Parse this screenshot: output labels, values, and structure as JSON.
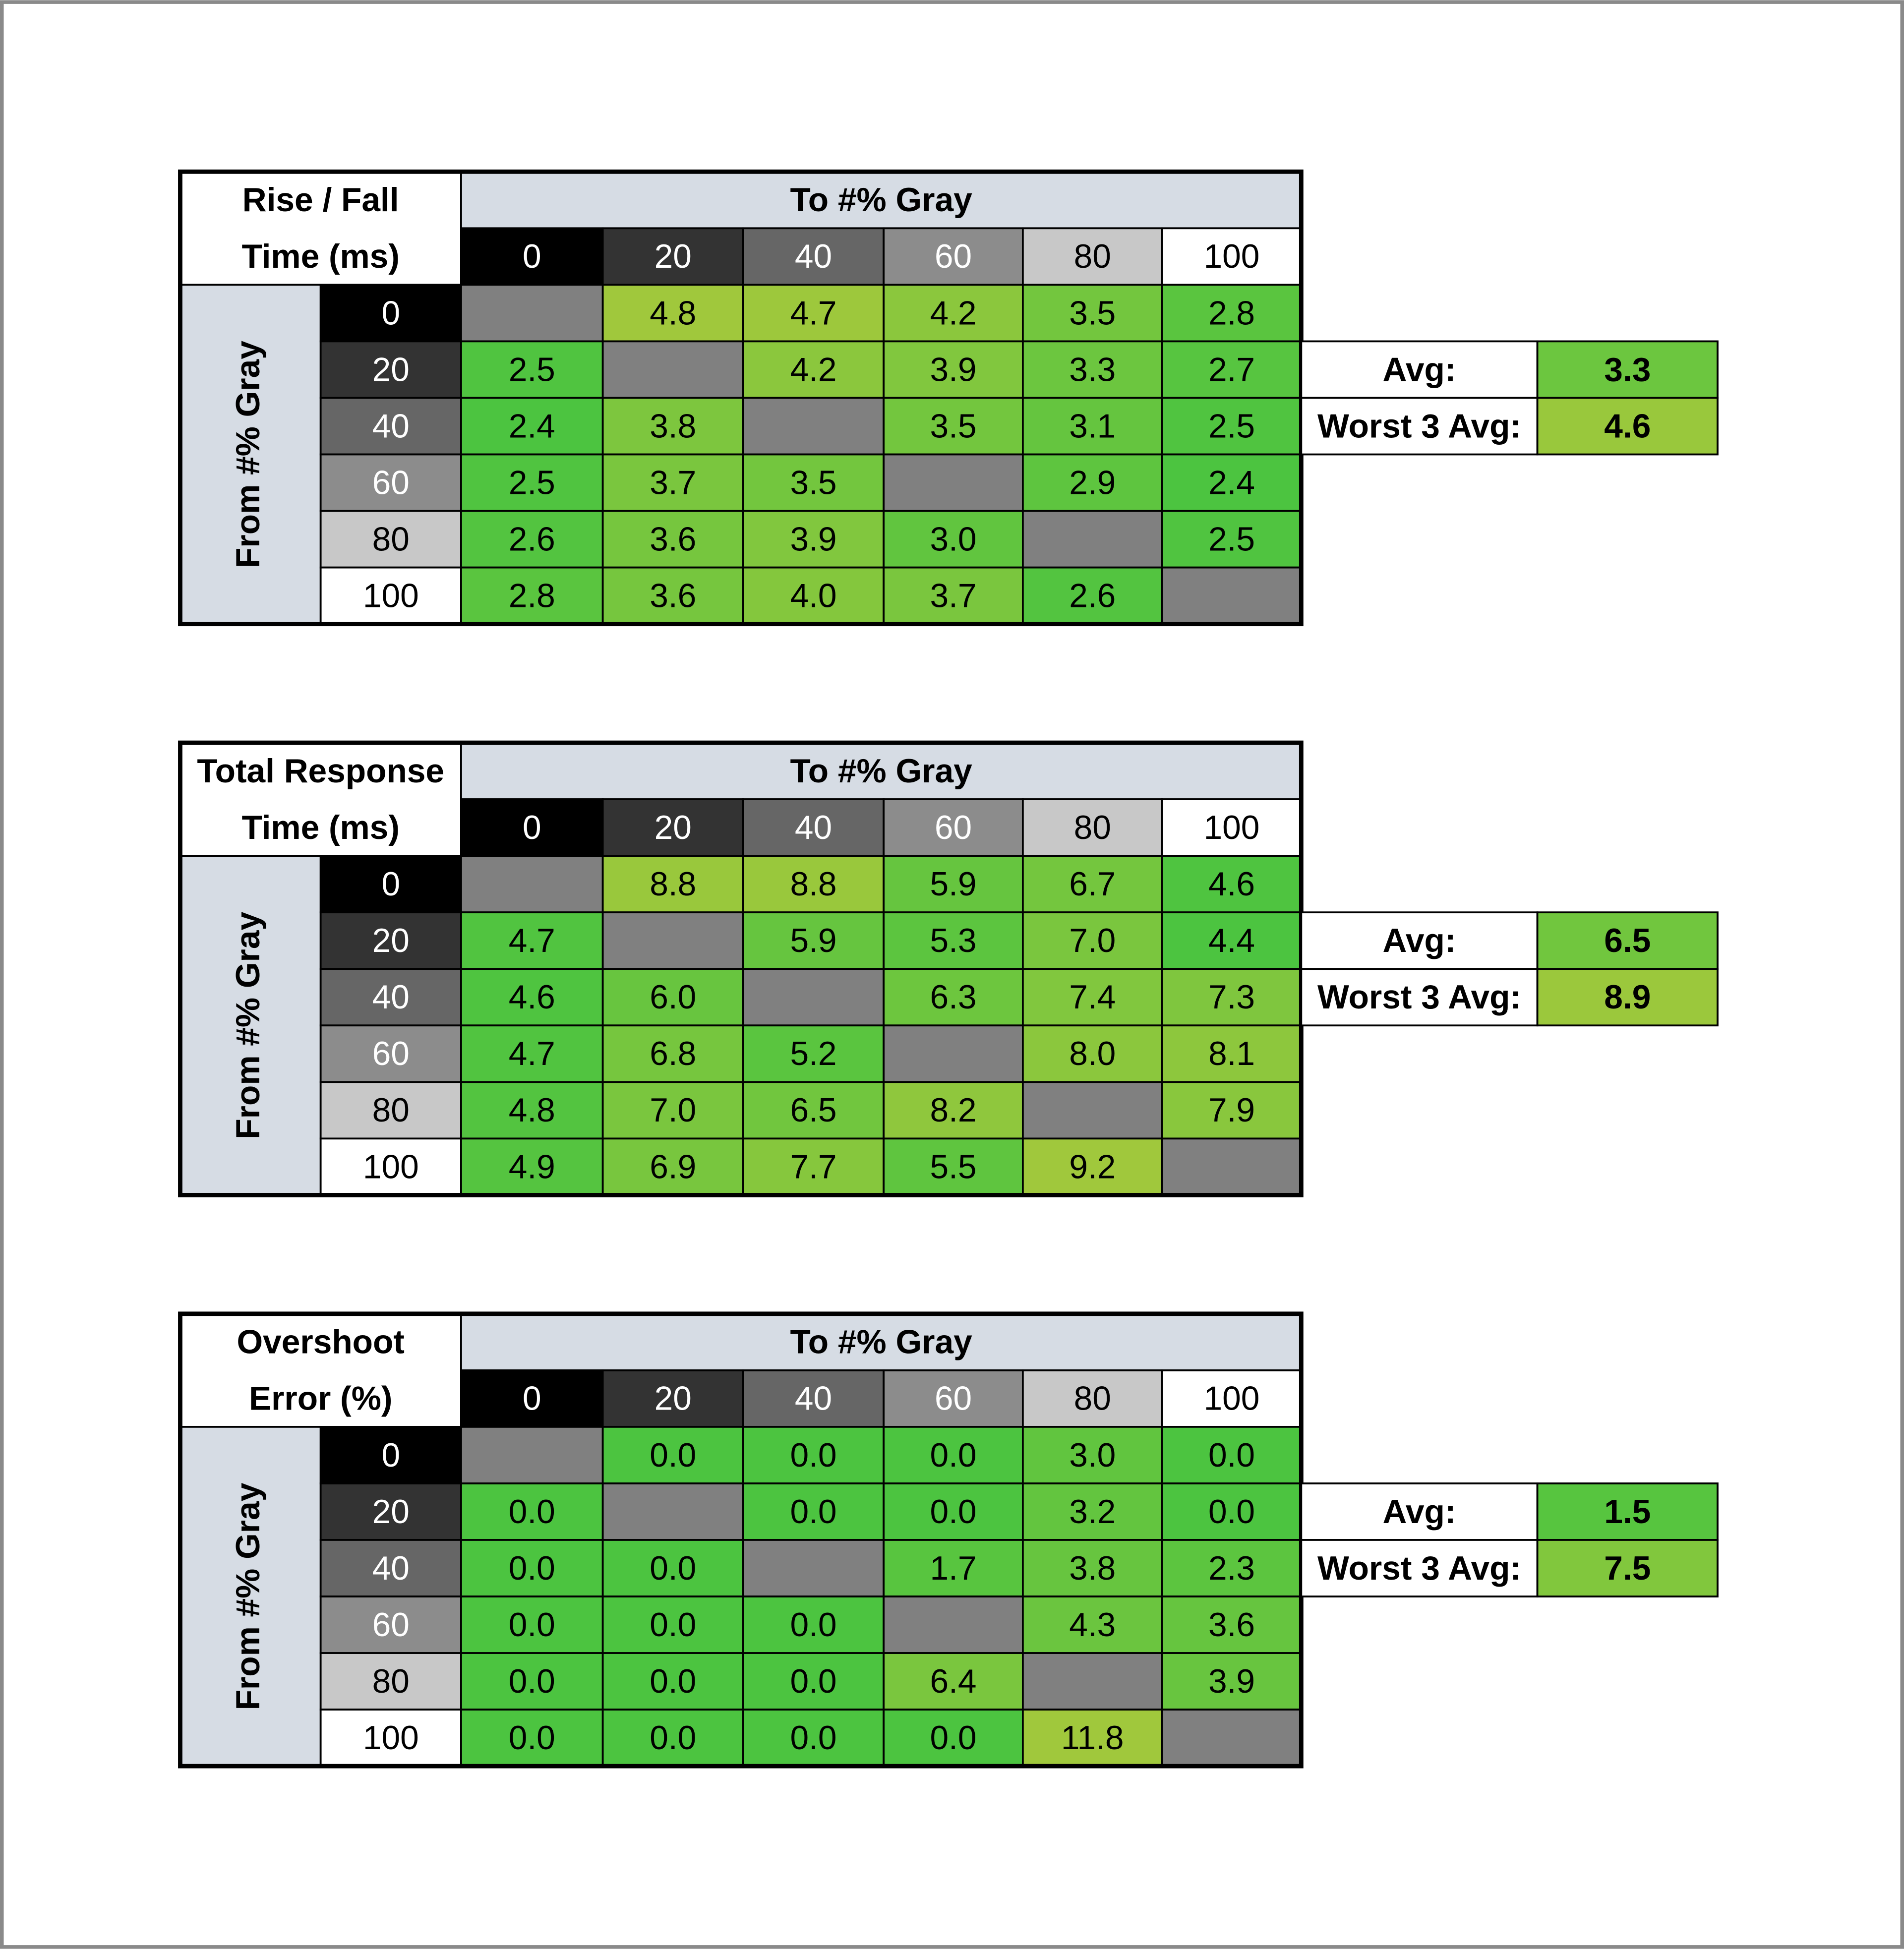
{
  "tables": [
    {
      "title": [
        "Rise / Fall",
        "Time (ms)"
      ],
      "column_header": "To #% Gray",
      "row_header": "From #% Gray",
      "columns": [
        "0",
        "20",
        "40",
        "60",
        "80",
        "100"
      ],
      "rows": [
        "0",
        "20",
        "40",
        "60",
        "80",
        "100"
      ],
      "cells": [
        [
          null,
          "4.8",
          "4.7",
          "4.2",
          "3.5",
          "2.8"
        ],
        [
          "2.5",
          null,
          "4.2",
          "3.9",
          "3.3",
          "2.7"
        ],
        [
          "2.4",
          "3.8",
          null,
          "3.5",
          "3.1",
          "2.5"
        ],
        [
          "2.5",
          "3.7",
          "3.5",
          null,
          "2.9",
          "2.4"
        ],
        [
          "2.6",
          "3.6",
          "3.9",
          "3.0",
          null,
          "2.5"
        ],
        [
          "2.8",
          "3.6",
          "4.0",
          "3.7",
          "2.6",
          null
        ]
      ],
      "summary": [
        {
          "label": "Avg:",
          "value": "3.3"
        },
        {
          "label": "Worst 3 Avg:",
          "value": "4.6"
        }
      ]
    },
    {
      "title": [
        "Total Response",
        "Time (ms)"
      ],
      "column_header": "To #% Gray",
      "row_header": "From #% Gray",
      "columns": [
        "0",
        "20",
        "40",
        "60",
        "80",
        "100"
      ],
      "rows": [
        "0",
        "20",
        "40",
        "60",
        "80",
        "100"
      ],
      "cells": [
        [
          null,
          "8.8",
          "8.8",
          "5.9",
          "6.7",
          "4.6"
        ],
        [
          "4.7",
          null,
          "5.9",
          "5.3",
          "7.0",
          "4.4"
        ],
        [
          "4.6",
          "6.0",
          null,
          "6.3",
          "7.4",
          "7.3"
        ],
        [
          "4.7",
          "6.8",
          "5.2",
          null,
          "8.0",
          "8.1"
        ],
        [
          "4.8",
          "7.0",
          "6.5",
          "8.2",
          null,
          "7.9"
        ],
        [
          "4.9",
          "6.9",
          "7.7",
          "5.5",
          "9.2",
          null
        ]
      ],
      "summary": [
        {
          "label": "Avg:",
          "value": "6.5"
        },
        {
          "label": "Worst 3 Avg:",
          "value": "8.9"
        }
      ]
    },
    {
      "title": [
        "Overshoot",
        "Error (%)"
      ],
      "column_header": "To #% Gray",
      "row_header": "From #% Gray",
      "columns": [
        "0",
        "20",
        "40",
        "60",
        "80",
        "100"
      ],
      "rows": [
        "0",
        "20",
        "40",
        "60",
        "80",
        "100"
      ],
      "cells": [
        [
          null,
          "0.0",
          "0.0",
          "0.0",
          "3.0",
          "0.0"
        ],
        [
          "0.0",
          null,
          "0.0",
          "0.0",
          "3.2",
          "0.0"
        ],
        [
          "0.0",
          "0.0",
          null,
          "1.7",
          "3.8",
          "2.3"
        ],
        [
          "0.0",
          "0.0",
          "0.0",
          null,
          "4.3",
          "3.6"
        ],
        [
          "0.0",
          "0.0",
          "0.0",
          "6.4",
          null,
          "3.9"
        ],
        [
          "0.0",
          "0.0",
          "0.0",
          "0.0",
          "11.8",
          null
        ]
      ],
      "summary": [
        {
          "label": "Avg:",
          "value": "1.5"
        },
        {
          "label": "Worst 3 Avg:",
          "value": "7.5"
        }
      ]
    }
  ]
}
